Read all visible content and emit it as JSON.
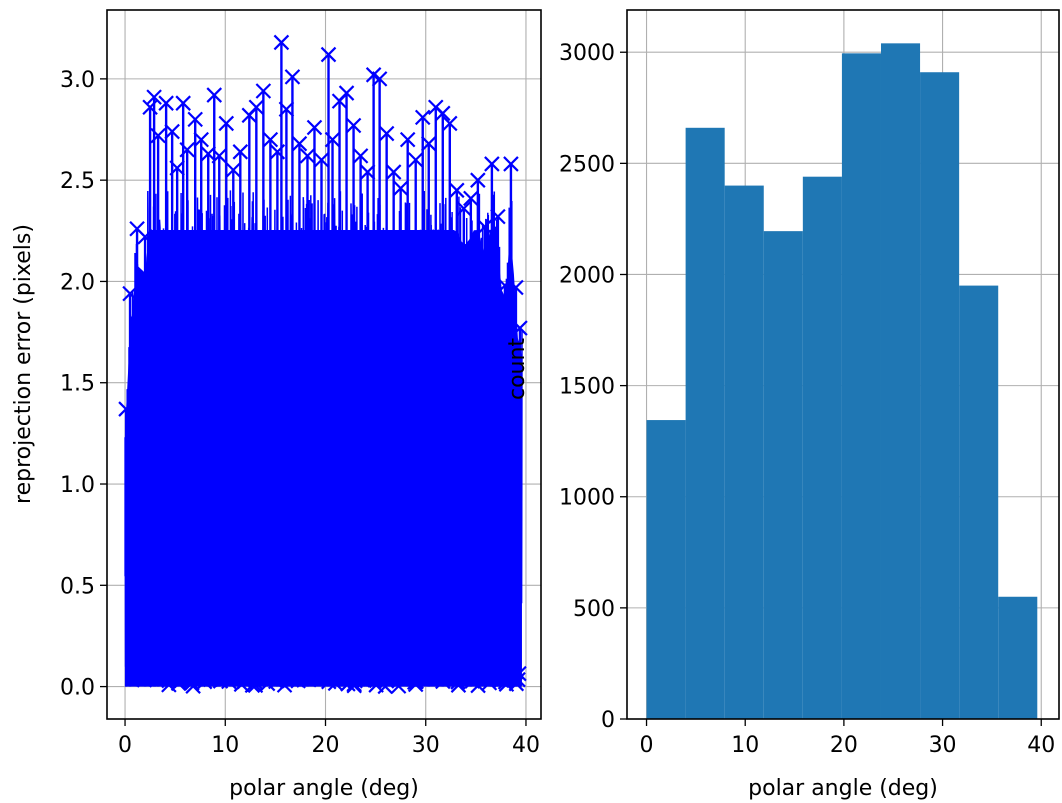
{
  "chart_data": [
    {
      "type": "scatter",
      "marker": "x",
      "connected": true,
      "color": "#0000ff",
      "title": "",
      "xlabel": "polar angle (deg)",
      "ylabel": "reprojection error (pixels)",
      "xlim": [
        -1.8,
        41.5
      ],
      "ylim": [
        -0.16,
        3.34
      ],
      "grid": true,
      "xticks": [
        0,
        10,
        20,
        30,
        40
      ],
      "xtick_labels": [
        "0",
        "10",
        "20",
        "30",
        "40"
      ],
      "yticks": [
        0.0,
        0.5,
        1.0,
        1.5,
        2.0,
        2.5,
        3.0
      ],
      "ytick_labels": [
        "0.0",
        "0.5",
        "1.0",
        "1.5",
        "2.0",
        "2.5",
        "3.0"
      ],
      "visible_peaks": {
        "x": [
          0.1,
          0.5,
          1.2,
          2.0,
          2.5,
          2.9,
          3.3,
          4.1,
          4.7,
          5.2,
          5.8,
          6.2,
          7.0,
          7.6,
          8.3,
          8.9,
          9.4,
          10.1,
          10.8,
          11.5,
          12.4,
          13.1,
          13.8,
          14.5,
          15.2,
          15.6,
          16.1,
          16.7,
          17.4,
          18.2,
          18.9,
          19.6,
          20.3,
          20.7,
          21.4,
          22.1,
          22.8,
          23.5,
          24.2,
          24.8,
          25.4,
          26.1,
          26.8,
          27.5,
          28.2,
          29.0,
          29.7,
          30.3,
          31.0,
          31.7,
          32.4,
          33.1,
          33.8,
          34.5,
          35.2,
          35.9,
          36.6,
          37.2,
          37.9,
          38.5,
          39.0,
          39.4
        ],
        "y": [
          1.37,
          1.94,
          2.26,
          2.22,
          2.86,
          2.91,
          2.72,
          2.88,
          2.74,
          2.56,
          2.88,
          2.65,
          2.8,
          2.7,
          2.63,
          2.92,
          2.62,
          2.78,
          2.55,
          2.64,
          2.82,
          2.86,
          2.94,
          2.7,
          2.64,
          3.18,
          2.85,
          3.01,
          2.68,
          2.62,
          2.76,
          2.6,
          3.12,
          2.7,
          2.89,
          2.93,
          2.77,
          2.62,
          2.54,
          3.02,
          3.0,
          2.73,
          2.54,
          2.46,
          2.7,
          2.6,
          2.81,
          2.68,
          2.86,
          2.83,
          2.78,
          2.45,
          2.36,
          2.41,
          2.5,
          2.27,
          2.58,
          2.32,
          1.98,
          2.58,
          1.97,
          1.77
        ]
      }
    },
    {
      "type": "bar",
      "histogram": true,
      "color": "#1f77b4",
      "title": "",
      "xlabel": "polar angle (deg)",
      "ylabel": "count",
      "xlim": [
        -1.98,
        41.8
      ],
      "ylim": [
        0,
        3190
      ],
      "grid": true,
      "xticks": [
        0,
        10,
        20,
        30,
        40
      ],
      "xtick_labels": [
        "0",
        "10",
        "20",
        "30",
        "40"
      ],
      "yticks": [
        0,
        500,
        1000,
        1500,
        2000,
        2500,
        3000
      ],
      "ytick_labels": [
        "0",
        "500",
        "1000",
        "1500",
        "2000",
        "2500",
        "3000"
      ],
      "bin_edges": [
        0.0,
        3.96,
        7.92,
        11.88,
        15.84,
        19.8,
        23.76,
        27.72,
        31.68,
        35.64,
        39.6
      ],
      "values": [
        1345,
        2660,
        2400,
        2195,
        2440,
        2995,
        3040,
        2910,
        1950,
        550
      ]
    }
  ]
}
